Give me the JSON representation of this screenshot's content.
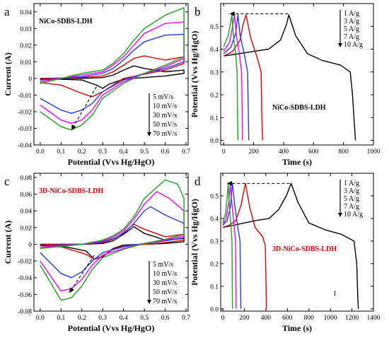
{
  "chart_data": [
    {
      "type": "line",
      "panel_letter": "a",
      "panel_label": "NiCo-SDBS-LDH",
      "panel_label_color": "#000000",
      "xlabel": "Potential (Vvs Hg/HgO)",
      "ylabel": "Current (A)",
      "xlim": [
        -0.03,
        0.71
      ],
      "ylim": [
        -0.04,
        0.045
      ],
      "xticks": [
        "0.0",
        "0.1",
        "0.2",
        "0.3",
        "0.4",
        "0.5",
        "0.6",
        "0.7"
      ],
      "yticks": [
        "-0.04",
        "-0.03",
        "-0.02",
        "-0.01",
        "0",
        "0.01",
        "0.02",
        "0.03",
        "0.04"
      ],
      "legend": [
        "5 mV/s",
        "10 mV/s",
        "30 mV/s",
        "50 mV/s",
        "70 mV/s"
      ],
      "series": [
        {
          "name": "5 mV/s",
          "color": "#000000",
          "x": [
            0.0,
            0.2,
            0.3,
            0.35,
            0.4,
            0.45,
            0.5,
            0.6,
            0.69,
            0.69,
            0.6,
            0.5,
            0.4,
            0.33,
            0.3,
            0.27,
            0.2,
            0.1,
            0.0
          ],
          "y": [
            0.0,
            0.0,
            0.0005,
            0.002,
            0.005,
            0.0075,
            0.006,
            0.004,
            0.005,
            0.003,
            0.0015,
            0.0005,
            -0.0005,
            -0.0035,
            -0.006,
            -0.004,
            -0.001,
            -0.0005,
            -0.0005
          ]
        },
        {
          "name": "10 mV/s",
          "color": "#e00000",
          "x": [
            0.0,
            0.2,
            0.3,
            0.35,
            0.4,
            0.45,
            0.5,
            0.6,
            0.69,
            0.69,
            0.6,
            0.5,
            0.4,
            0.35,
            0.3,
            0.25,
            0.2,
            0.1,
            0.0
          ],
          "y": [
            0.0,
            0.0005,
            0.0015,
            0.004,
            0.008,
            0.012,
            0.0135,
            0.011,
            0.013,
            0.009,
            0.005,
            0.0025,
            0.0,
            -0.004,
            -0.008,
            -0.011,
            -0.009,
            -0.004,
            -0.0025
          ]
        },
        {
          "name": "30 mV/s",
          "color": "#1e3cff",
          "x": [
            0.0,
            0.2,
            0.3,
            0.35,
            0.4,
            0.45,
            0.5,
            0.6,
            0.69,
            0.69,
            0.6,
            0.5,
            0.4,
            0.3,
            0.25,
            0.2,
            0.15,
            0.1,
            0.0
          ],
          "y": [
            -0.001,
            0.001,
            0.003,
            0.006,
            0.011,
            0.017,
            0.022,
            0.026,
            0.0265,
            0.01,
            0.006,
            0.003,
            -0.001,
            -0.008,
            -0.015,
            -0.019,
            -0.021,
            -0.019,
            -0.012
          ]
        },
        {
          "name": "50 mV/s",
          "color": "#ff00ff",
          "x": [
            0.0,
            0.2,
            0.3,
            0.35,
            0.4,
            0.45,
            0.5,
            0.6,
            0.69,
            0.69,
            0.6,
            0.5,
            0.4,
            0.3,
            0.25,
            0.2,
            0.15,
            0.1,
            0.0
          ],
          "y": [
            -0.002,
            0.002,
            0.004,
            0.008,
            0.013,
            0.02,
            0.027,
            0.033,
            0.034,
            0.012,
            0.007,
            0.003,
            -0.002,
            -0.01,
            -0.019,
            -0.025,
            -0.027,
            -0.025,
            -0.016
          ]
        },
        {
          "name": "70 mV/s",
          "color": "#19a619",
          "x": [
            0.0,
            0.2,
            0.3,
            0.35,
            0.4,
            0.45,
            0.5,
            0.6,
            0.69,
            0.69,
            0.6,
            0.5,
            0.4,
            0.3,
            0.25,
            0.2,
            0.15,
            0.1,
            0.0
          ],
          "y": [
            -0.003,
            0.003,
            0.005,
            0.009,
            0.015,
            0.023,
            0.03,
            0.038,
            0.0425,
            0.013,
            0.008,
            0.003,
            -0.003,
            -0.012,
            -0.022,
            -0.028,
            -0.031,
            -0.029,
            -0.02
          ]
        }
      ],
      "arrow": {
        "from": [
          0.27,
          -0.005
        ],
        "to": [
          0.15,
          -0.031
        ]
      }
    },
    {
      "type": "line",
      "panel_letter": "b",
      "panel_label": "NiCo-SDBS-LDH",
      "panel_label_color": "#000000",
      "xlabel": "Time (s)",
      "ylabel": "Potential (Vvs Hg/HgO)",
      "xlim": [
        -20,
        1000
      ],
      "ylim": [
        -0.02,
        0.6
      ],
      "xticks": [
        "0",
        "200",
        "400",
        "600",
        "800",
        "1000"
      ],
      "yticks": [
        "0.0",
        "0.1",
        "0.2",
        "0.3",
        "0.4",
        "0.5"
      ],
      "legend": [
        "1 A/g",
        "3 A/g",
        "5 A/g",
        "7 A/g",
        "10 A/g"
      ],
      "series": [
        {
          "name": "1 A/g",
          "color": "#000000",
          "x": [
            0,
            100,
            200,
            300,
            380,
            420,
            435,
            480,
            560,
            660,
            780,
            845,
            860,
            875,
            880
          ],
          "y": [
            0.37,
            0.38,
            0.39,
            0.4,
            0.44,
            0.51,
            0.55,
            0.46,
            0.38,
            0.35,
            0.33,
            0.3,
            0.2,
            0.05,
            0.0
          ]
        },
        {
          "name": "3 A/g",
          "color": "#e00000",
          "x": [
            0,
            60,
            110,
            130,
            150,
            180,
            230,
            250,
            255,
            260
          ],
          "y": [
            0.37,
            0.39,
            0.44,
            0.51,
            0.55,
            0.45,
            0.35,
            0.3,
            0.1,
            0.0
          ]
        },
        {
          "name": "5 A/g",
          "color": "#1e3cff",
          "x": [
            0,
            50,
            80,
            95,
            110,
            140,
            160,
            165,
            168
          ],
          "y": [
            0.38,
            0.41,
            0.47,
            0.55,
            0.46,
            0.37,
            0.3,
            0.1,
            0.0
          ]
        },
        {
          "name": "7 A/g",
          "color": "#ff00ff",
          "x": [
            0,
            40,
            60,
            72,
            85,
            105,
            120,
            124,
            126
          ],
          "y": [
            0.39,
            0.43,
            0.5,
            0.55,
            0.46,
            0.38,
            0.3,
            0.1,
            0.0
          ]
        },
        {
          "name": "10 A/g",
          "color": "#19a619",
          "x": [
            0,
            30,
            45,
            55,
            65,
            80,
            90,
            93,
            95
          ],
          "y": [
            0.41,
            0.46,
            0.51,
            0.55,
            0.46,
            0.38,
            0.3,
            0.1,
            0.0
          ]
        }
      ],
      "arrow": {
        "from": [
          430,
          0.555
        ],
        "to": [
          40,
          0.555
        ]
      }
    },
    {
      "type": "line",
      "panel_letter": "c",
      "panel_label": "3D-NiCo-SDBS-LDH",
      "panel_label_color": "#e00000",
      "xlabel": "Potential (Vvs Hg/HgO)",
      "ylabel": "Current (A)",
      "xlim": [
        -0.03,
        0.71
      ],
      "ylim": [
        -0.08,
        0.085
      ],
      "xticks": [
        "0.0",
        "0.1",
        "0.2",
        "0.3",
        "0.4",
        "0.5",
        "0.6",
        "0.7"
      ],
      "yticks": [
        "-0.08",
        "-0.06",
        "-0.04",
        "-0.02",
        "0",
        "0.02",
        "0.04",
        "0.06",
        "0.08"
      ],
      "legend": [
        "5 mV/s",
        "10 mV/s",
        "30 mV/s",
        "50 mV/s",
        "70 mV/s"
      ],
      "series": [
        {
          "name": "5 mV/s",
          "color": "#000000",
          "x": [
            0.0,
            0.2,
            0.3,
            0.35,
            0.4,
            0.45,
            0.5,
            0.6,
            0.69,
            0.69,
            0.6,
            0.5,
            0.4,
            0.35,
            0.3,
            0.26,
            0.22,
            0.1,
            0.0
          ],
          "y": [
            0.0,
            0.0,
            0.001,
            0.004,
            0.012,
            0.021,
            0.013,
            0.005,
            0.007,
            0.003,
            0.001,
            0.0,
            -0.001,
            -0.005,
            -0.015,
            -0.018,
            -0.008,
            -0.002,
            -0.001
          ]
        },
        {
          "name": "10 mV/s",
          "color": "#e00000",
          "x": [
            0.0,
            0.2,
            0.3,
            0.35,
            0.4,
            0.45,
            0.5,
            0.6,
            0.69,
            0.69,
            0.6,
            0.5,
            0.4,
            0.35,
            0.3,
            0.26,
            0.22,
            0.1,
            0.0
          ],
          "y": [
            0.0,
            0.0,
            0.002,
            0.006,
            0.014,
            0.024,
            0.018,
            0.009,
            0.012,
            0.005,
            0.002,
            0.0,
            -0.002,
            -0.006,
            -0.014,
            -0.018,
            -0.012,
            -0.003,
            -0.002
          ]
        },
        {
          "name": "30 mV/s",
          "color": "#1e3cff",
          "x": [
            0.0,
            0.2,
            0.3,
            0.35,
            0.4,
            0.45,
            0.5,
            0.53,
            0.6,
            0.69,
            0.69,
            0.6,
            0.5,
            0.4,
            0.3,
            0.25,
            0.2,
            0.15,
            0.1,
            0.0
          ],
          "y": [
            -0.002,
            0.0,
            0.003,
            0.007,
            0.013,
            0.025,
            0.04,
            0.045,
            0.035,
            0.025,
            0.008,
            0.004,
            0.001,
            -0.003,
            -0.01,
            -0.02,
            -0.033,
            -0.04,
            -0.035,
            -0.01
          ]
        },
        {
          "name": "50 mV/s",
          "color": "#ff00ff",
          "x": [
            0.0,
            0.2,
            0.3,
            0.35,
            0.4,
            0.45,
            0.5,
            0.56,
            0.62,
            0.69,
            0.69,
            0.6,
            0.5,
            0.4,
            0.3,
            0.25,
            0.2,
            0.15,
            0.1,
            0.0
          ],
          "y": [
            -0.004,
            0.0,
            0.004,
            0.009,
            0.016,
            0.03,
            0.048,
            0.063,
            0.055,
            0.04,
            0.01,
            0.005,
            0.001,
            -0.005,
            -0.013,
            -0.025,
            -0.042,
            -0.053,
            -0.056,
            -0.02
          ]
        },
        {
          "name": "70 mV/s",
          "color": "#19a619",
          "x": [
            0.0,
            0.2,
            0.3,
            0.35,
            0.4,
            0.45,
            0.5,
            0.6,
            0.66,
            0.69,
            0.69,
            0.6,
            0.5,
            0.4,
            0.3,
            0.25,
            0.2,
            0.15,
            0.1,
            0.0
          ],
          "y": [
            -0.005,
            0.0,
            0.005,
            0.01,
            0.018,
            0.033,
            0.055,
            0.077,
            0.072,
            0.055,
            0.012,
            0.006,
            0.001,
            -0.006,
            -0.016,
            -0.03,
            -0.05,
            -0.064,
            -0.067,
            -0.025
          ]
        }
      ],
      "arrow": {
        "from": [
          0.26,
          -0.013
        ],
        "to": [
          0.14,
          -0.058
        ]
      }
    },
    {
      "type": "line",
      "panel_letter": "d",
      "panel_label": "3D-NiCo-SDBS-LDH",
      "panel_label_color": "#e00000",
      "xlabel": "Time (s)",
      "ylabel": "Potential (Vvs Hg/HgO)",
      "xlim": [
        -20,
        1400
      ],
      "ylim": [
        -0.01,
        0.6
      ],
      "xticks": [
        "0",
        "200",
        "400",
        "600",
        "800",
        "1000",
        "1200",
        "1400"
      ],
      "yticks": [
        "0.0",
        "0.1",
        "0.2",
        "0.3",
        "0.4",
        "0.5"
      ],
      "legend": [
        "1 A/g",
        "3 A/g",
        "5 A/g",
        "7 A/g",
        "10 A/g"
      ],
      "series": [
        {
          "name": "1 A/g",
          "color": "#000000",
          "x": [
            0,
            100,
            200,
            300,
            430,
            520,
            590,
            635,
            700,
            800,
            950,
            1100,
            1220,
            1245,
            1255,
            1260
          ],
          "y": [
            0.36,
            0.37,
            0.38,
            0.39,
            0.4,
            0.44,
            0.5,
            0.555,
            0.47,
            0.38,
            0.35,
            0.33,
            0.3,
            0.2,
            0.05,
            0.0
          ]
        },
        {
          "name": "3 A/g",
          "color": "#e00000",
          "x": [
            0,
            60,
            120,
            170,
            210,
            250,
            300,
            370,
            395,
            402,
            405
          ],
          "y": [
            0.36,
            0.37,
            0.39,
            0.46,
            0.555,
            0.45,
            0.36,
            0.32,
            0.28,
            0.1,
            0.0
          ]
        },
        {
          "name": "5 A/g",
          "color": "#1e3cff",
          "x": [
            0,
            40,
            70,
            90,
            110,
            140,
            160,
            165,
            168
          ],
          "y": [
            0.37,
            0.39,
            0.45,
            0.555,
            0.46,
            0.36,
            0.3,
            0.1,
            0.0
          ]
        },
        {
          "name": "7 A/g",
          "color": "#ff00ff",
          "x": [
            0,
            30,
            55,
            70,
            85,
            105,
            118,
            122,
            124
          ],
          "y": [
            0.37,
            0.4,
            0.47,
            0.555,
            0.46,
            0.37,
            0.3,
            0.1,
            0.0
          ]
        },
        {
          "name": "10 A/g",
          "color": "#19a619",
          "x": [
            0,
            25,
            40,
            50,
            60,
            75,
            85,
            88,
            90
          ],
          "y": [
            0.38,
            0.42,
            0.49,
            0.555,
            0.46,
            0.37,
            0.3,
            0.1,
            0.0
          ]
        }
      ],
      "arrow": {
        "from": [
          620,
          0.555
        ],
        "to": [
          40,
          0.555
        ]
      },
      "stray_mark": "I"
    }
  ]
}
